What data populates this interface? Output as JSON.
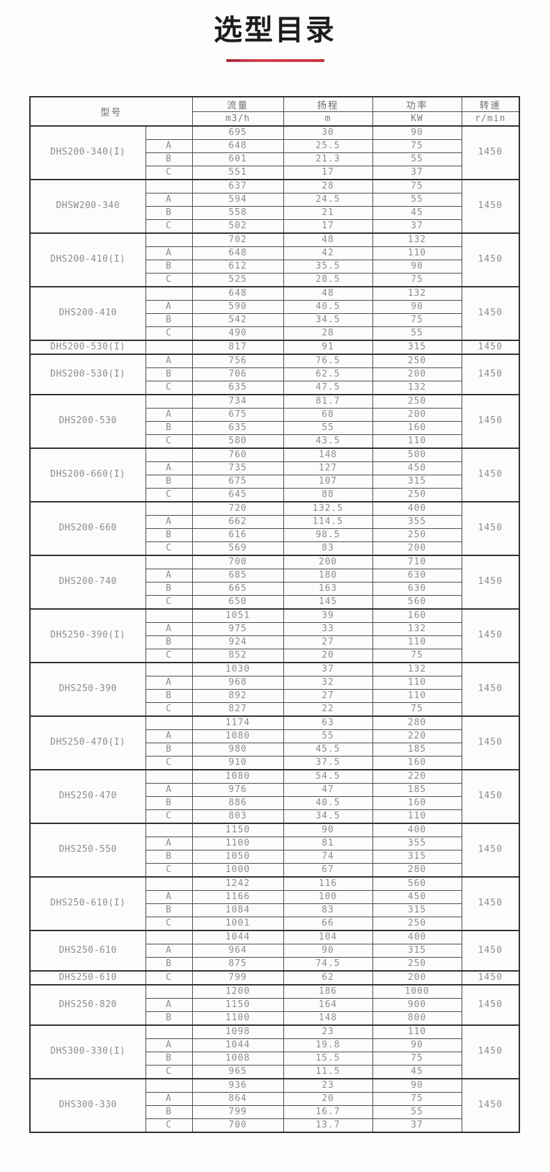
{
  "page": {
    "title": "选型目录"
  },
  "table": {
    "headers": {
      "model": "型号",
      "flow": "流量",
      "flow_unit": "m3/h",
      "head": "扬程",
      "head_unit": "m",
      "power": "功率",
      "power_unit": "KW",
      "speed": "转速",
      "speed_unit": "r/min"
    },
    "groups": [
      {
        "model": "DHS200-340(I)",
        "speed": "1450",
        "rows": [
          [
            "",
            "695",
            "30",
            "90"
          ],
          [
            "A",
            "648",
            "25.5",
            "75"
          ],
          [
            "B",
            "601",
            "21.3",
            "55"
          ],
          [
            "C",
            "551",
            "17",
            "37"
          ]
        ]
      },
      {
        "model": "DHSW200-340",
        "speed": "1450",
        "rows": [
          [
            "",
            "637",
            "28",
            "75"
          ],
          [
            "A",
            "594",
            "24.5",
            "55"
          ],
          [
            "B",
            "558",
            "21",
            "45"
          ],
          [
            "C",
            "502",
            "17",
            "37"
          ]
        ]
      },
      {
        "model": "DHS200-410(I)",
        "speed": "1450",
        "rows": [
          [
            "",
            "702",
            "48",
            "132"
          ],
          [
            "A",
            "648",
            "42",
            "110"
          ],
          [
            "B",
            "612",
            "35.5",
            "90"
          ],
          [
            "C",
            "525",
            "28.5",
            "75"
          ]
        ]
      },
      {
        "model": "DHS200-410",
        "speed": "1450",
        "rows": [
          [
            "",
            "648",
            "48",
            "132"
          ],
          [
            "A",
            "590",
            "40.5",
            "90"
          ],
          [
            "B",
            "542",
            "34.5",
            "75"
          ],
          [
            "C",
            "490",
            "28",
            "55"
          ]
        ]
      },
      {
        "model": "DHS200-530(I)",
        "speed": "1450",
        "rows": [
          [
            "",
            "817",
            "91",
            "315"
          ]
        ]
      },
      {
        "model": "DHS200-530(I)",
        "speed": "1450",
        "rows": [
          [
            "A",
            "756",
            "76.5",
            "250"
          ],
          [
            "B",
            "706",
            "62.5",
            "200"
          ],
          [
            "C",
            "635",
            "47.5",
            "132"
          ]
        ]
      },
      {
        "model": "DHS200-530",
        "speed": "1450",
        "rows": [
          [
            "",
            "734",
            "81.7",
            "250"
          ],
          [
            "A",
            "675",
            "68",
            "200"
          ],
          [
            "B",
            "635",
            "55",
            "160"
          ],
          [
            "C",
            "580",
            "43.5",
            "110"
          ]
        ]
      },
      {
        "model": "DHS200-660(I)",
        "speed": "1450",
        "rows": [
          [
            "",
            "760",
            "148",
            "500"
          ],
          [
            "A",
            "735",
            "127",
            "450"
          ],
          [
            "B",
            "675",
            "107",
            "315"
          ],
          [
            "C",
            "645",
            "88",
            "250"
          ]
        ]
      },
      {
        "model": "DHS200-660",
        "speed": "1450",
        "rows": [
          [
            "",
            "720",
            "132.5",
            "400"
          ],
          [
            "A",
            "662",
            "114.5",
            "355"
          ],
          [
            "B",
            "616",
            "98.5",
            "250"
          ],
          [
            "C",
            "569",
            "83",
            "200"
          ]
        ]
      },
      {
        "model": "DHS200-740",
        "speed": "1450",
        "rows": [
          [
            "",
            "700",
            "200",
            "710"
          ],
          [
            "A",
            "685",
            "180",
            "630"
          ],
          [
            "B",
            "665",
            "163",
            "630"
          ],
          [
            "C",
            "650",
            "145",
            "560"
          ]
        ]
      },
      {
        "model": "DHS250-390(I)",
        "speed": "1450",
        "rows": [
          [
            "",
            "1051",
            "39",
            "160"
          ],
          [
            "A",
            "975",
            "33",
            "132"
          ],
          [
            "B",
            "924",
            "27",
            "110"
          ],
          [
            "C",
            "852",
            "20",
            "75"
          ]
        ]
      },
      {
        "model": "DHS250-390",
        "speed": "1450",
        "rows": [
          [
            "",
            "1030",
            "37",
            "132"
          ],
          [
            "A",
            "968",
            "32",
            "110"
          ],
          [
            "B",
            "892",
            "27",
            "110"
          ],
          [
            "C",
            "827",
            "22",
            "75"
          ]
        ]
      },
      {
        "model": "DHS250-470(I)",
        "speed": "1450",
        "rows": [
          [
            "",
            "1174",
            "63",
            "280"
          ],
          [
            "A",
            "1080",
            "55",
            "220"
          ],
          [
            "B",
            "980",
            "45.5",
            "185"
          ],
          [
            "C",
            "910",
            "37.5",
            "160"
          ]
        ]
      },
      {
        "model": "DHS250-470",
        "speed": "1450",
        "rows": [
          [
            "",
            "1080",
            "54.5",
            "220"
          ],
          [
            "A",
            "976",
            "47",
            "185"
          ],
          [
            "B",
            "886",
            "40.5",
            "160"
          ],
          [
            "C",
            "803",
            "34.5",
            "110"
          ]
        ]
      },
      {
        "model": "DHS250-550",
        "speed": "1450",
        "rows": [
          [
            "",
            "1150",
            "90",
            "400"
          ],
          [
            "A",
            "1100",
            "81",
            "355"
          ],
          [
            "B",
            "1050",
            "74",
            "315"
          ],
          [
            "C",
            "1000",
            "67",
            "280"
          ]
        ]
      },
      {
        "model": "DHS250-610(I)",
        "speed": "1450",
        "rows": [
          [
            "",
            "1242",
            "116",
            "560"
          ],
          [
            "A",
            "1166",
            "100",
            "450"
          ],
          [
            "B",
            "1084",
            "83",
            "315"
          ],
          [
            "C",
            "1001",
            "66",
            "250"
          ]
        ]
      },
      {
        "model": "DHS250-610",
        "speed": "1450",
        "rows": [
          [
            "",
            "1044",
            "104",
            "400"
          ],
          [
            "A",
            "964",
            "90",
            "315"
          ],
          [
            "B",
            "875",
            "74.5",
            "250"
          ]
        ]
      },
      {
        "model": "DHS250-610",
        "speed": "1450",
        "rows": [
          [
            "C",
            "799",
            "62",
            "200"
          ]
        ]
      },
      {
        "model": "DHS250-820",
        "speed": "1450",
        "rows": [
          [
            "",
            "1200",
            "186",
            "1000"
          ],
          [
            "A",
            "1150",
            "164",
            "900"
          ],
          [
            "B",
            "1100",
            "148",
            "800"
          ]
        ]
      },
      {
        "model": "DHS300-330(I)",
        "speed": "1450",
        "rows": [
          [
            "",
            "1098",
            "23",
            "110"
          ],
          [
            "A",
            "1044",
            "19.8",
            "90"
          ],
          [
            "B",
            "1008",
            "15.5",
            "75"
          ],
          [
            "C",
            "965",
            "11.5",
            "45"
          ]
        ]
      },
      {
        "model": "DHS300-330",
        "speed": "1450",
        "rows": [
          [
            "",
            "936",
            "23",
            "90"
          ],
          [
            "A",
            "864",
            "20",
            "75"
          ],
          [
            "B",
            "799",
            "16.7",
            "55"
          ],
          [
            "C",
            "700",
            "13.7",
            "37"
          ]
        ]
      }
    ]
  },
  "colors": {
    "accent_bar": "#c63248",
    "table_border": "#2f2f2f",
    "cell_text": "#8c8c8c",
    "title_text": "#1d1d1f"
  }
}
